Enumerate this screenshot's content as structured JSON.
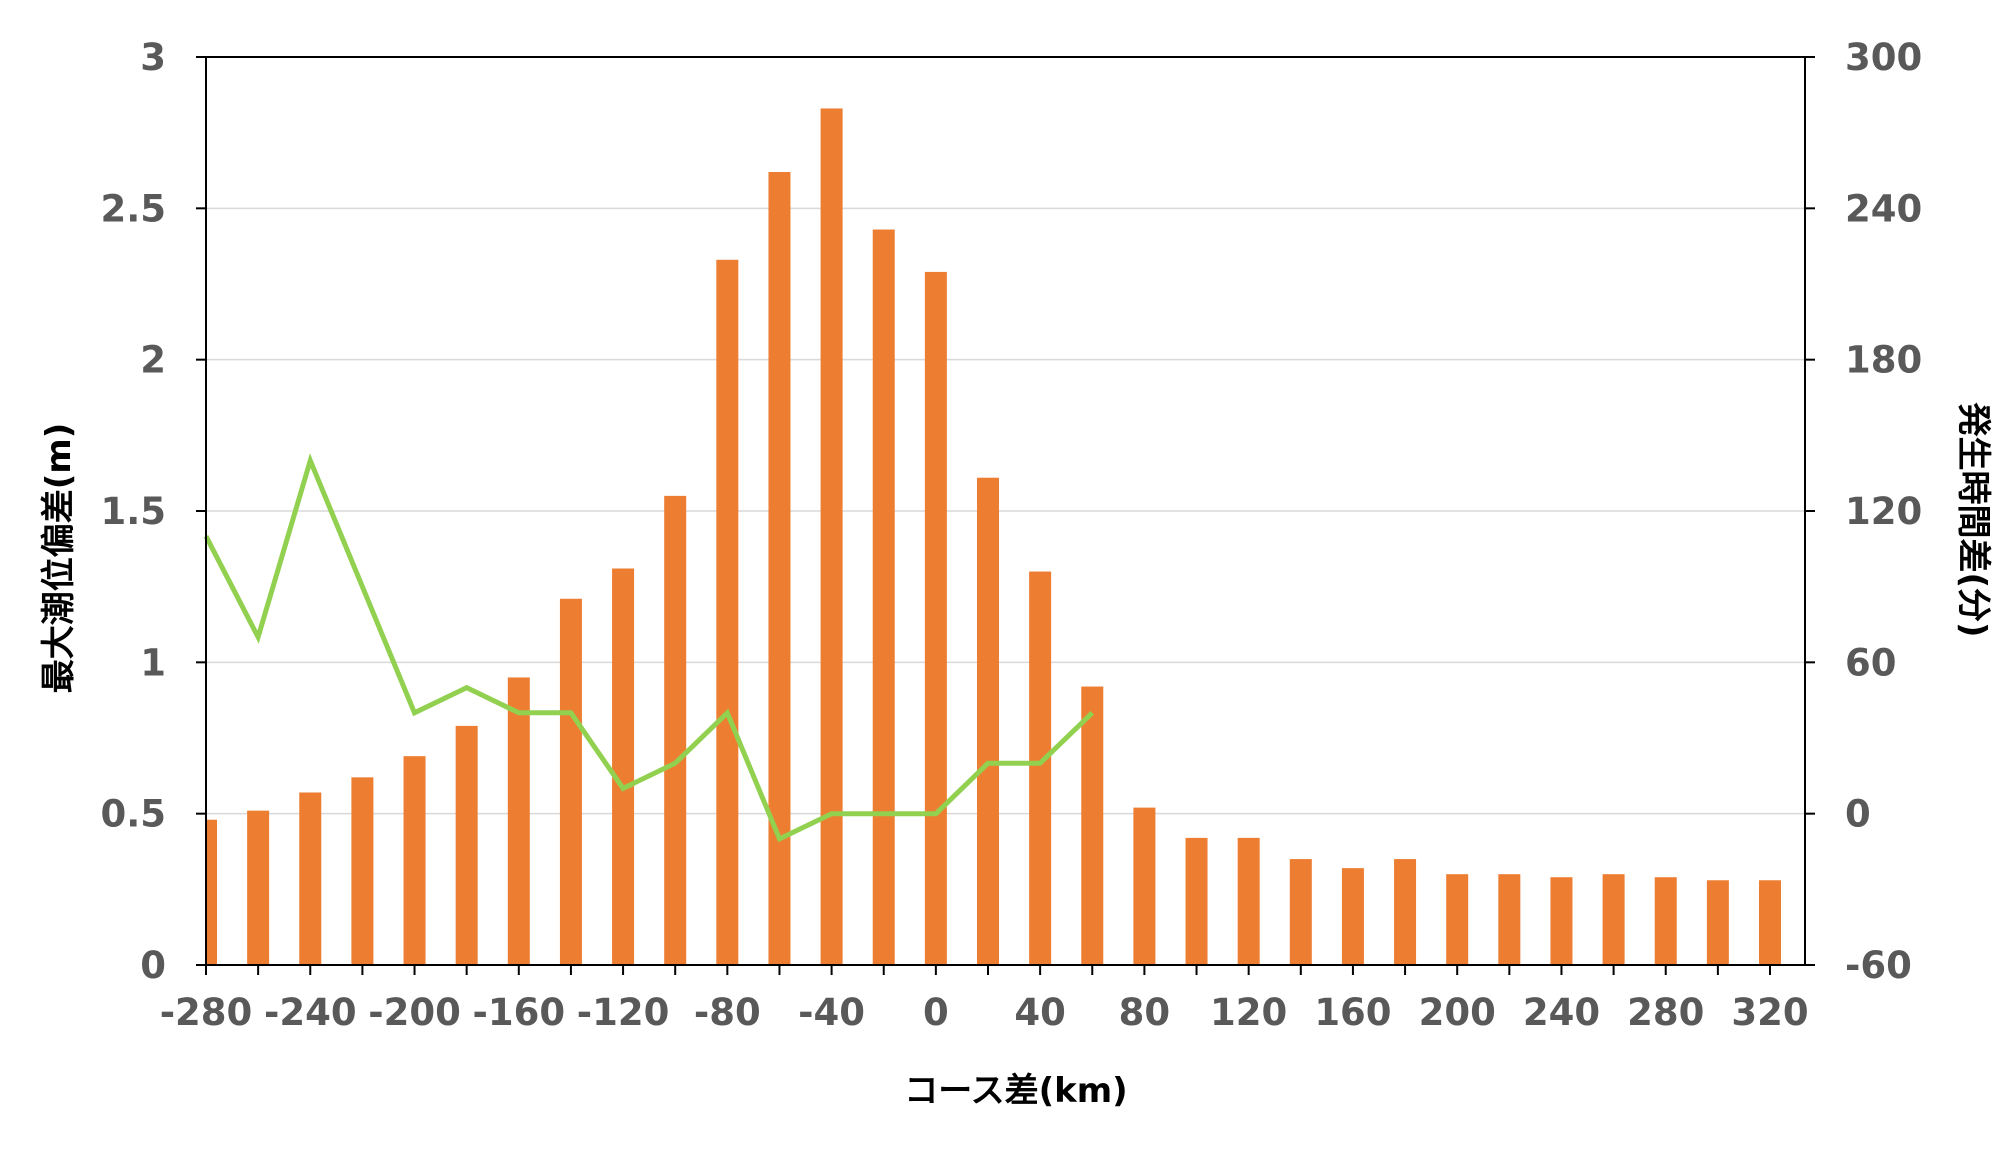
{
  "chart_data": {
    "type": "bar",
    "title": "",
    "xlabel": "コース差(km)",
    "ylabel": "最大潮位偏差(m)",
    "y2label": "発生時間差(分)",
    "x": [
      -280,
      -260,
      -240,
      -220,
      -200,
      -180,
      -160,
      -140,
      -120,
      -100,
      -80,
      -60,
      -40,
      -20,
      0,
      20,
      40,
      60,
      80,
      100,
      120,
      140,
      160,
      180,
      200,
      220,
      240,
      260,
      280,
      300,
      320
    ],
    "x_ticks": [
      -280,
      -240,
      -200,
      -160,
      -120,
      -80,
      -40,
      0,
      40,
      80,
      120,
      160,
      200,
      240,
      280,
      320
    ],
    "xlim": [
      -280,
      320
    ],
    "ylim": [
      0,
      3
    ],
    "y_ticks": [
      0,
      0.5,
      1,
      1.5,
      2,
      2.5,
      3
    ],
    "y2lim": [
      -60,
      300
    ],
    "y2_ticks": [
      -60,
      0,
      60,
      120,
      180,
      240,
      300
    ],
    "grid": true,
    "series": [
      {
        "type": "bar",
        "axis": "left",
        "color": "#ED7D31",
        "values": [
          0.48,
          0.51,
          0.57,
          0.62,
          0.69,
          0.79,
          0.95,
          1.21,
          1.31,
          1.55,
          2.33,
          2.62,
          2.83,
          2.43,
          2.29,
          1.61,
          1.3,
          0.92,
          0.52,
          0.42,
          0.42,
          0.35,
          0.32,
          0.35,
          0.3,
          0.3,
          0.29,
          0.3,
          0.29,
          0.28,
          0.28
        ]
      },
      {
        "type": "line",
        "axis": "right",
        "color": "#92D050",
        "values": [
          110,
          70,
          140,
          90,
          40,
          50,
          40,
          40,
          10,
          20,
          40,
          -10,
          0,
          0,
          0,
          20,
          20,
          40,
          null,
          null,
          null,
          null,
          null,
          null,
          null,
          null,
          null,
          null,
          null,
          null,
          null
        ]
      }
    ]
  }
}
